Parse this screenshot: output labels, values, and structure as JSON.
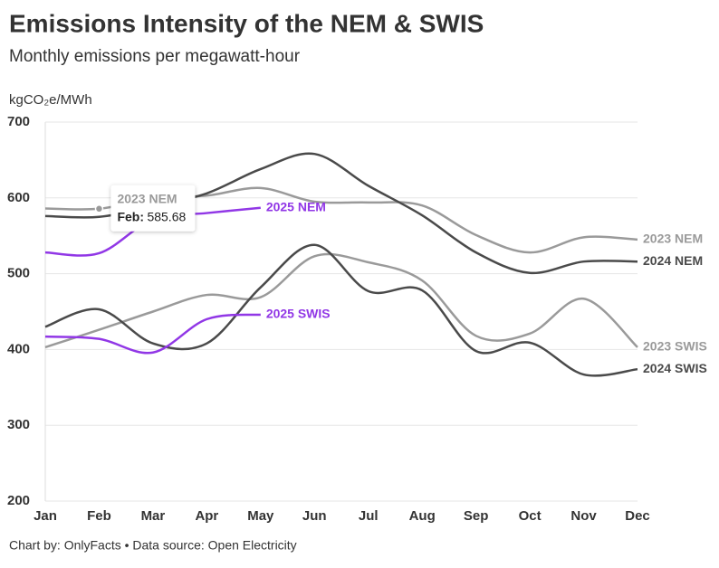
{
  "chart_data": {
    "type": "line",
    "title": "Emissions Intensity of the NEM & SWIS",
    "subtitle": "Monthly emissions per megawatt-hour",
    "y_label": "kgCO₂e/MWh",
    "footer": "Chart by: OnlyFacts • Data source: Open Electricity",
    "categories": [
      "Jan",
      "Feb",
      "Mar",
      "Apr",
      "May",
      "Jun",
      "Jul",
      "Aug",
      "Sep",
      "Oct",
      "Nov",
      "Dec"
    ],
    "ylim": [
      200,
      700
    ],
    "yticks": [
      200,
      300,
      400,
      500,
      600,
      700
    ],
    "grid": true,
    "series": [
      {
        "name": "2023 NEM",
        "color": "#9a9a9a",
        "values": [
          586,
          585.68,
          599,
          603,
          613,
          595,
          594,
          590,
          551,
          528,
          548,
          545
        ]
      },
      {
        "name": "2023 SWIS",
        "color": "#9a9a9a",
        "values": [
          403,
          426,
          450,
          472,
          469,
          523,
          515,
          491,
          418,
          421,
          467,
          403
        ]
      },
      {
        "name": "2024 NEM",
        "color": "#4a4a4a",
        "values": [
          576,
          575,
          589,
          606,
          638,
          658,
          616,
          577,
          528,
          501,
          516,
          516
        ]
      },
      {
        "name": "2024 SWIS",
        "color": "#4a4a4a",
        "values": [
          430,
          453,
          408,
          408,
          482,
          538,
          477,
          478,
          398,
          409,
          367,
          374
        ]
      },
      {
        "name": "2025 NEM",
        "color": "#9137e6",
        "values": [
          528,
          527,
          572,
          580,
          587,
          null,
          null,
          null,
          null,
          null,
          null,
          null
        ]
      },
      {
        "name": "2025 SWIS",
        "color": "#9137e6",
        "values": [
          417,
          414,
          396,
          440,
          446,
          null,
          null,
          null,
          null,
          null,
          null,
          null
        ]
      }
    ],
    "tooltip": {
      "label": "Feb:"
    }
  }
}
